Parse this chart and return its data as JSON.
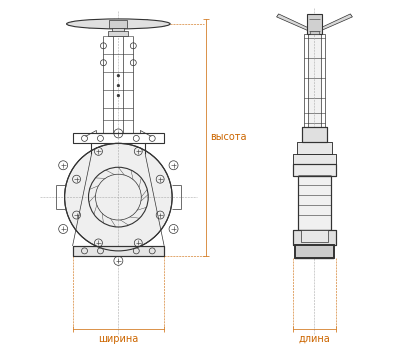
{
  "bg_color": "#ffffff",
  "line_color": "#333333",
  "dim_color": "#cc6600",
  "text_color": "#000000",
  "label_vysota": "высота",
  "label_shirina": "ширина",
  "label_dlina": "длина",
  "fig_width": 4.0,
  "fig_height": 3.46,
  "dpi": 100
}
